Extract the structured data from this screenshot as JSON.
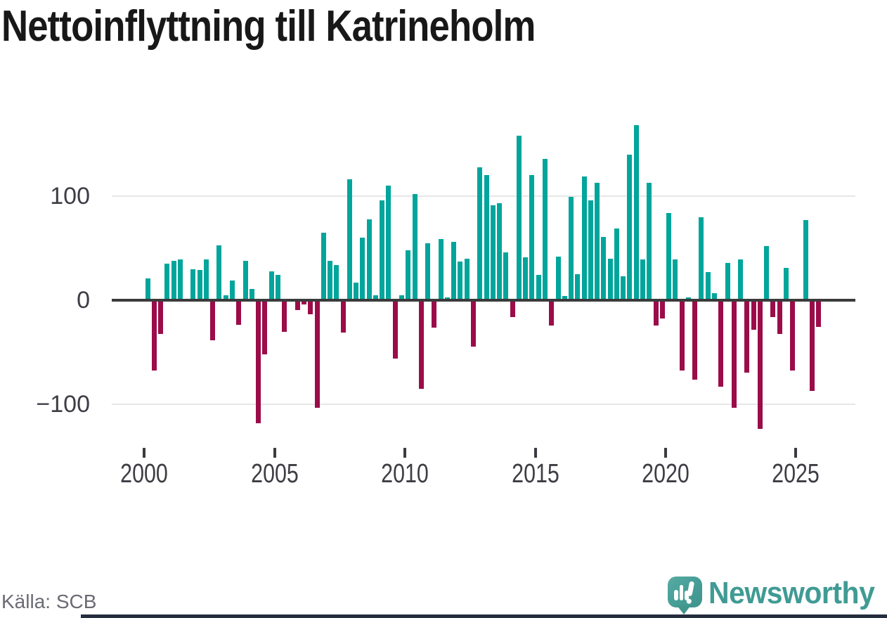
{
  "title": "Nettoinflyttning till Katrineholm",
  "source_note": "Källa: SCB",
  "branding": {
    "wordmark": "Newsworthy",
    "icon": "newsworthy-speech-bubble-barchart-icon"
  },
  "colors": {
    "positive_bar": "#00a59b",
    "negative_bar": "#9b0c49",
    "zero_line": "#3b3b3b",
    "gridline": "#e7e7e7",
    "axis_text": "#3d3d44",
    "title_text": "#181818",
    "source_text": "#6b6b74",
    "brand_teal": "#3f9b94",
    "footer_bar": "#242e3e"
  },
  "chart_data": {
    "type": "bar",
    "title": "Nettoinflyttning till Katrineholm",
    "frequency": "quarterly",
    "x_start_year": 2000,
    "x_start_quarter": 1,
    "x_end_year": 2025,
    "x_end_quarter": 4,
    "values": [
      21,
      -66,
      -31,
      35,
      38,
      39,
      0,
      30,
      29,
      39,
      -37,
      53,
      5,
      19,
      -22,
      38,
      11,
      -117,
      -51,
      28,
      24,
      -29,
      0,
      -8,
      -3,
      -12,
      -102,
      65,
      38,
      34,
      -30,
      116,
      17,
      60,
      78,
      5,
      96,
      110,
      -55,
      5,
      48,
      102,
      -84,
      55,
      -25,
      59,
      3,
      56,
      37,
      40,
      -43,
      128,
      120,
      91,
      93,
      46,
      -15,
      158,
      41,
      120,
      24,
      136,
      -23,
      42,
      4,
      99,
      25,
      119,
      96,
      113,
      61,
      40,
      69,
      23,
      140,
      168,
      39,
      113,
      -23,
      -16,
      84,
      39,
      -66,
      3,
      -75,
      80,
      27,
      7,
      -82,
      36,
      -102,
      39,
      -68,
      -27,
      -122,
      52,
      -15,
      -31,
      31,
      -66,
      0,
      77,
      -86,
      -24
    ],
    "x_ticks": [
      {
        "label": "2000",
        "year": 2000
      },
      {
        "label": "2005",
        "year": 2005
      },
      {
        "label": "2010",
        "year": 2010
      },
      {
        "label": "2015",
        "year": 2015
      },
      {
        "label": "2020",
        "year": 2020
      },
      {
        "label": "2025",
        "year": 2025
      }
    ],
    "y_ticks": [
      {
        "label": "100",
        "value": 100
      },
      {
        "label": "0",
        "value": 0
      },
      {
        "label": "−100",
        "value": -100
      }
    ],
    "ylim": [
      -130,
      175
    ],
    "grid": "horizontal lines at 100 and -100, dark zero baseline",
    "legend": "none"
  }
}
